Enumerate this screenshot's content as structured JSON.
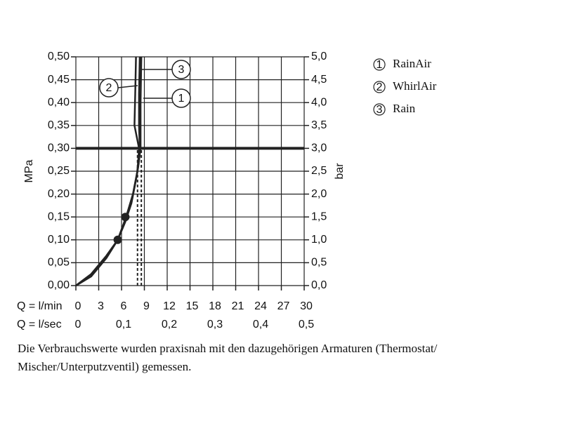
{
  "chart_data": {
    "type": "line",
    "y_label": "MPa",
    "y2_label": "bar",
    "x_label": "Q = l/min",
    "x2_label": "Q = l/sec",
    "xlim": [
      0,
      30
    ],
    "xticks": [
      0,
      3,
      6,
      9,
      12,
      15,
      18,
      21,
      24,
      27,
      30
    ],
    "x2lim": [
      0,
      0.5
    ],
    "x2ticks": [
      0,
      {
        "value": 0.1,
        "label": "0,1"
      },
      {
        "value": 0.2,
        "label": "0,2"
      },
      {
        "value": 0.3,
        "label": "0,3"
      },
      {
        "value": 0.4,
        "label": "0,4"
      },
      {
        "value": 0.5,
        "label": "0,5"
      }
    ],
    "ylim": [
      0,
      0.5
    ],
    "yticks": [
      {
        "value": 0,
        "label": "0,00"
      },
      {
        "value": 0.05,
        "label": "0,05"
      },
      {
        "value": 0.1,
        "label": "0,10"
      },
      {
        "value": 0.15,
        "label": "0,15"
      },
      {
        "value": 0.2,
        "label": "0,20"
      },
      {
        "value": 0.25,
        "label": "0,25"
      },
      {
        "value": 0.3,
        "label": "0,30"
      },
      {
        "value": 0.35,
        "label": "0,35"
      },
      {
        "value": 0.4,
        "label": "0,40"
      },
      {
        "value": 0.45,
        "label": "0,45"
      },
      {
        "value": 0.5,
        "label": "0,50"
      }
    ],
    "y2lim": [
      0,
      5
    ],
    "y2ticks": [
      {
        "value": 0,
        "label": "0,0"
      },
      {
        "value": 0.5,
        "label": "0,5"
      },
      {
        "value": 1,
        "label": "1,0"
      },
      {
        "value": 1.5,
        "label": "1,5"
      },
      {
        "value": 2,
        "label": "2,0"
      },
      {
        "value": 2.5,
        "label": "2,5"
      },
      {
        "value": 3,
        "label": "3,0"
      },
      {
        "value": 3.5,
        "label": "3,5"
      },
      {
        "value": 4,
        "label": "4,0"
      },
      {
        "value": 4.5,
        "label": "4,5"
      },
      {
        "value": 5,
        "label": "5,0"
      }
    ],
    "grid": true,
    "color": "#222222",
    "series": [
      {
        "name": "RainAir",
        "label": "1",
        "x": [
          0,
          2,
          4,
          5.5,
          6.5,
          7.3,
          8.0,
          8.4,
          8.3,
          8.3,
          8.4
        ],
        "values": [
          0,
          0.02,
          0.06,
          0.1,
          0.14,
          0.18,
          0.24,
          0.3,
          0.35,
          0.42,
          0.5
        ]
      },
      {
        "name": "WhirlAir",
        "label": "2",
        "x": [
          0,
          2,
          4,
          5.5,
          6.5,
          7.4,
          8.1,
          8.3,
          7.7,
          7.8,
          7.9
        ],
        "values": [
          0,
          0.025,
          0.065,
          0.1,
          0.14,
          0.19,
          0.25,
          0.3,
          0.35,
          0.42,
          0.5
        ]
      },
      {
        "name": "Rain",
        "label": "3",
        "x": [
          0,
          2,
          4,
          5.5,
          6.6,
          7.5,
          8.2,
          8.5,
          8.5,
          8.6
        ],
        "values": [
          0,
          0.02,
          0.06,
          0.1,
          0.15,
          0.2,
          0.26,
          0.3,
          0.4,
          0.5
        ]
      }
    ],
    "points": [
      {
        "x": 5.5,
        "y": 0.1
      },
      {
        "x": 6.5,
        "y": 0.15
      }
    ],
    "dashed_lines": [
      8.1,
      8.6
    ],
    "dashed_top": 0.3,
    "hline": 0.3,
    "note": [
      "Die Verbrauchswerte wurden praxisnah mit den dazugehörigen Armaturen (Thermostat/",
      "Mischer/Unterputzventil) gemessen."
    ]
  }
}
